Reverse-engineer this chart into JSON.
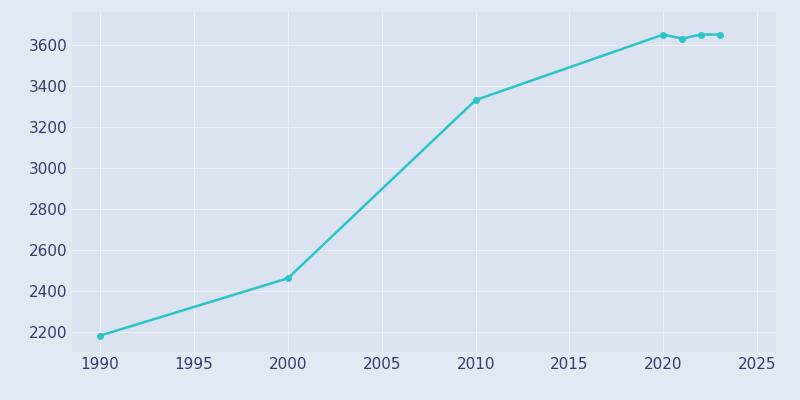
{
  "years": [
    1990,
    2000,
    2010,
    2020,
    2021,
    2022,
    2023
  ],
  "population": [
    2180,
    2460,
    3330,
    3650,
    3630,
    3650,
    3650
  ],
  "line_color": "#2bc5c5",
  "marker_color": "#2bc5c5",
  "bg_color": "#e2e9f2",
  "plot_bg_color": "#dae3ef",
  "grid_color": "#edf1f7",
  "tick_color": "#3a3a6a",
  "xlim": [
    1988.5,
    2026
  ],
  "ylim": [
    2100,
    3760
  ],
  "xticks": [
    1990,
    1995,
    2000,
    2005,
    2010,
    2015,
    2020,
    2025
  ],
  "yticks": [
    2200,
    2400,
    2600,
    2800,
    3000,
    3200,
    3400,
    3600
  ],
  "linewidth": 1.8,
  "markersize": 4.5
}
